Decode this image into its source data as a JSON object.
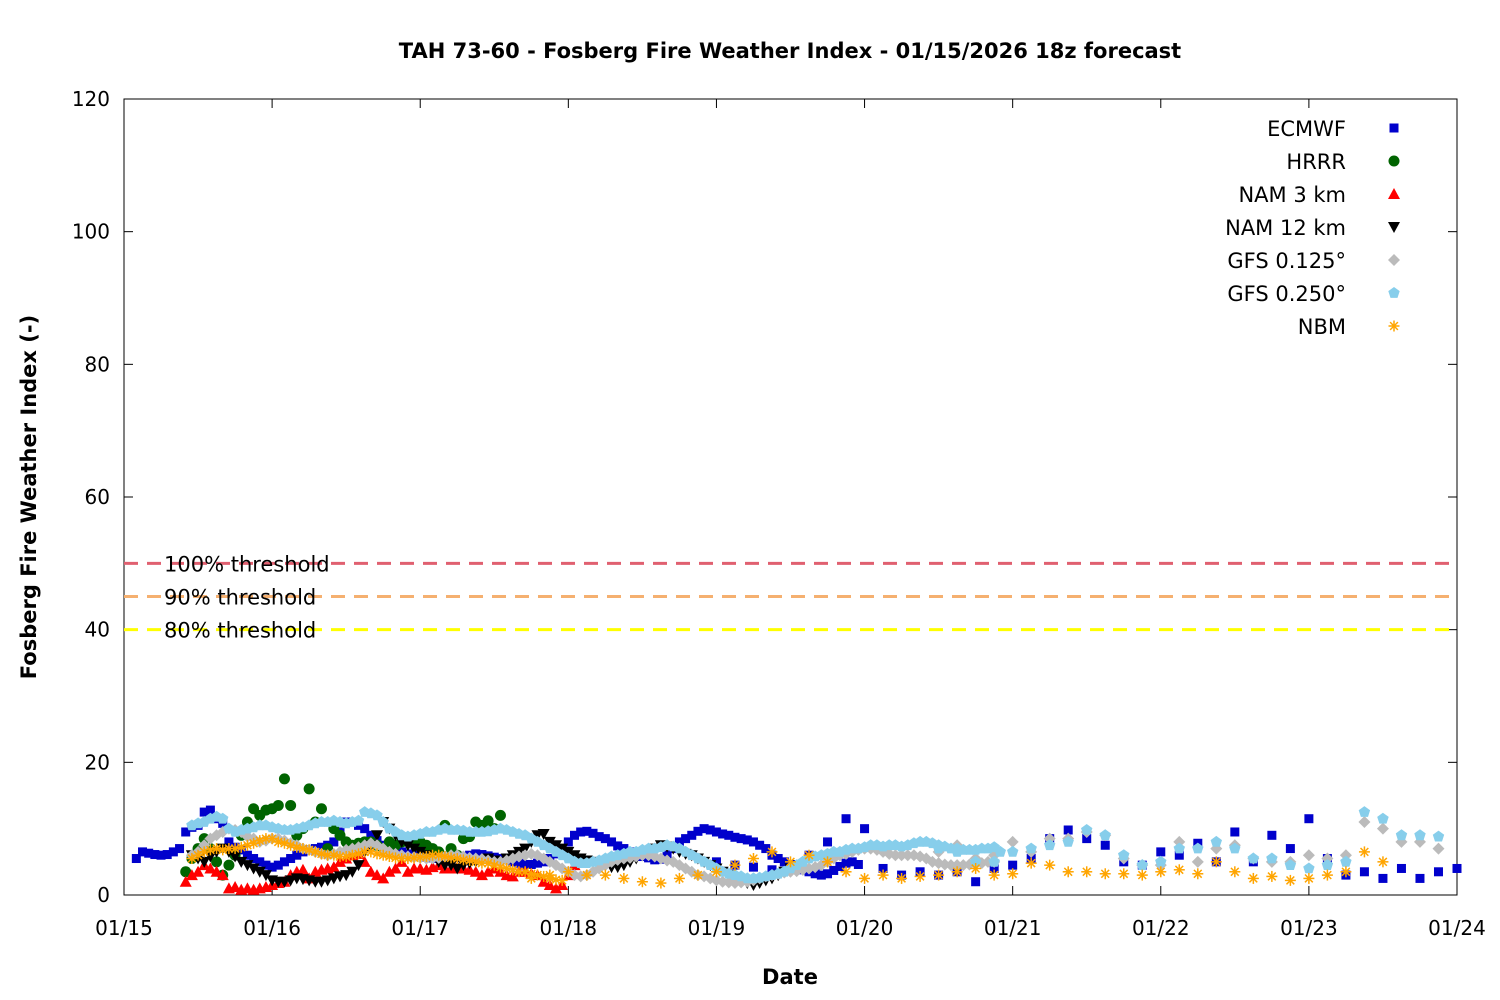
{
  "chart_data": {
    "type": "scatter",
    "title": "TAH 73-60 - Fosberg Fire Weather Index - 01/15/2026 18z forecast",
    "xlabel": "Date",
    "ylabel": "Fosberg Fire Weather Index (-)",
    "xlim": [
      "2026-01-15T00:00",
      "2026-01-24T00:00"
    ],
    "ylim": [
      0,
      120
    ],
    "x_ticks": [
      "01/15",
      "01/16",
      "01/17",
      "01/18",
      "01/19",
      "01/20",
      "01/21",
      "01/22",
      "01/23",
      "01/24"
    ],
    "y_ticks": [
      0,
      20,
      40,
      60,
      80,
      100,
      120
    ],
    "grid": false,
    "legend_position": "top-right",
    "thresholds": [
      {
        "name": "100% threshold",
        "value": 50,
        "color": "#e06070"
      },
      {
        "name": "90% threshold",
        "value": 45,
        "color": "#f5b070"
      },
      {
        "name": "80% threshold",
        "value": 40,
        "color": "#ffff00"
      }
    ],
    "series": [
      {
        "name": "ECMWF",
        "marker": "square",
        "color": "#0000cc",
        "start": "2026-01-15T02:00",
        "step_hours": 1,
        "values": [
          5.5,
          6.5,
          6.3,
          6.1,
          6,
          6.1,
          6.5,
          7,
          9.5,
          10.2,
          10.5,
          12.5,
          12.8,
          11.5,
          10.8,
          8,
          7.2,
          6.8,
          6,
          5.5,
          5,
          4.5,
          4.2,
          4.5,
          5,
          5.5,
          6,
          6.5,
          6.8,
          7,
          7.2,
          7.5,
          8,
          9.5,
          11,
          11,
          10.5,
          10,
          9,
          8.2,
          7.5,
          7,
          6.8,
          6.5,
          6.2,
          6,
          5.8,
          5.7,
          5.6,
          5.5,
          5.5,
          5.6,
          5.7,
          5.8,
          6,
          6.2,
          6.1,
          5.9,
          5.7,
          5.5,
          5.3,
          5,
          4.8,
          4.6,
          4.6,
          4.8,
          5,
          5.5,
          6.2,
          7,
          8,
          9,
          9.5,
          9.6,
          9.3,
          8.8,
          8.5,
          8,
          7.4,
          7,
          6.5,
          6.1,
          5.8,
          5.6,
          5.3,
          5.4,
          6,
          7,
          8,
          8.5,
          9,
          9.6,
          10,
          9.8,
          9.5,
          9.2,
          9,
          8.7,
          8.5,
          8.3,
          8,
          7.5,
          7,
          6,
          5.5,
          5,
          4.6,
          4.2,
          3.8,
          3.5,
          3.2,
          3,
          3.2,
          3.7,
          4.3,
          4.8,
          5,
          4.6
        ]
      },
      {
        "name": "ECMWF",
        "marker": "square",
        "color": "#0000cc",
        "start": "2026-01-19T00:00",
        "step_hours": 3,
        "values": [
          5,
          4.5,
          4.2,
          3.8,
          4.5,
          6,
          8,
          11.5,
          10,
          4,
          3,
          3.5,
          3,
          3.5,
          2,
          4,
          4.5,
          5.5,
          8.5,
          9.8,
          8.5,
          7.5,
          5,
          4.5,
          6.5,
          6,
          7.8,
          5,
          9.5,
          5,
          9,
          7,
          11.5,
          5.5,
          3,
          3.5,
          2.5,
          4,
          2.5,
          3.5,
          4
        ]
      },
      {
        "name": "HRRR",
        "marker": "circle",
        "color": "#006400",
        "start": "2026-01-15T10:00",
        "step_hours": 1,
        "values": [
          3.5,
          5.5,
          7,
          8.5,
          7,
          5,
          3,
          4.5,
          6,
          9,
          11,
          13,
          12,
          12.8,
          13,
          13.5,
          17.5,
          13.5,
          9,
          10,
          16,
          11,
          13,
          7,
          10,
          9,
          8,
          7.5,
          7.8,
          8,
          8,
          7.5,
          7,
          8,
          7.5,
          8,
          8.2,
          8.5,
          8,
          7.5,
          7,
          6.5,
          10.5,
          7,
          6,
          8.5,
          8.8,
          11,
          10.5,
          11.2,
          10,
          12
        ]
      },
      {
        "name": "NAM 3 km",
        "marker": "triangle-up",
        "color": "#ff0000",
        "start": "2026-01-15T10:00",
        "step_hours": 1,
        "values": [
          2,
          3,
          3.5,
          4.5,
          4,
          3.5,
          3,
          1,
          1.2,
          0.8,
          1,
          0.8,
          1,
          1.2,
          1.5,
          1.8,
          2,
          3,
          3.5,
          3.8,
          2.5,
          3.5,
          3.8,
          4,
          4.2,
          5,
          5.5,
          6,
          6.2,
          5,
          3.5,
          3,
          2.5,
          3.5,
          4,
          5,
          3.5,
          4,
          4,
          3.8,
          4.2,
          4.5,
          4,
          4,
          4.2,
          4,
          3.8,
          3.5,
          3,
          3.5,
          4,
          3.5,
          3,
          2.8,
          3.5,
          3.5,
          3.2,
          3,
          2,
          1.5,
          1,
          1.5,
          3,
          4.5,
          5
        ]
      },
      {
        "name": "NAM 12 km",
        "marker": "triangle-down",
        "color": "#000000",
        "start": "2026-01-15T11:00",
        "step_hours": 1,
        "values": [
          6,
          5.5,
          5,
          5.8,
          6.5,
          7,
          6.5,
          5.8,
          5,
          4.5,
          4,
          3.5,
          3,
          2.2,
          2,
          2,
          2.2,
          2.5,
          2.4,
          2.2,
          2,
          2,
          2.2,
          2.5,
          2.8,
          3,
          3.5,
          4.5,
          6.5,
          7.5,
          9,
          11,
          10,
          9,
          8,
          7.5,
          7,
          6.5,
          6,
          5.5,
          5,
          4.5,
          4.5,
          4,
          4.5,
          4.8,
          5,
          5.2,
          5.5,
          5.2,
          5,
          5.5,
          6,
          6.5,
          7,
          8,
          9,
          9.2,
          8,
          7.5,
          7,
          6.5,
          6,
          5.5,
          5.2,
          5,
          4.8,
          4.5,
          4.2,
          4.2,
          4.5,
          5,
          5.5,
          6,
          6.5,
          7,
          7.5,
          7.3,
          7,
          6.5,
          6.2,
          6,
          5.5,
          5,
          4.5,
          4,
          3.5,
          3,
          2.5,
          2,
          1.8,
          1.5,
          1.8,
          2.2,
          2.5,
          3,
          3.5,
          4,
          4,
          3.8
        ]
      },
      {
        "name": "GFS 0.125°",
        "marker": "diamond",
        "color": "#bbbbbb",
        "start": "2026-01-15T11:00",
        "step_hours": 1,
        "values": [
          6,
          6.5,
          7.5,
          8.5,
          9,
          9.5,
          10,
          9.8,
          9.5,
          8.8,
          8.5,
          8,
          8.2,
          8.5,
          8.5,
          8.2,
          7.8,
          7.5,
          7,
          6.8,
          6.5,
          6.2,
          6,
          6.2,
          6.5,
          6.8,
          7,
          7.2,
          7.5,
          7.8,
          7.5,
          7,
          6.5,
          6.2,
          6,
          5.8,
          5.7,
          5.6,
          5.5,
          5.5,
          5.6,
          5.8,
          6,
          6,
          5.8,
          5.6,
          5.5,
          5.4,
          5.2,
          5,
          5,
          5.2,
          5.5,
          5.8,
          6,
          6.2,
          6,
          5.5,
          5,
          4.5,
          4,
          3.5,
          3,
          2.8,
          3,
          3.5,
          4,
          4.5,
          5,
          5.3,
          5.5,
          5.6,
          5.8,
          6,
          6,
          5.8,
          5.5,
          5.2,
          5,
          4.5,
          4,
          3.5,
          3,
          2.8,
          2.5,
          2.2,
          2,
          1.9,
          1.8,
          1.9,
          2,
          2.2,
          2.5,
          2.8,
          3,
          3.2,
          3.4,
          3.5,
          3.6,
          3.8,
          4,
          4.2,
          4.5,
          5,
          5.5,
          6,
          6.2,
          6.5,
          6.8,
          7,
          7,
          6.8,
          6.5,
          6.2,
          6,
          6,
          6,
          6,
          5.8,
          5.5,
          5,
          4.8,
          4.6,
          4.5,
          4.5,
          4.5,
          4.6,
          4.7,
          4.8,
          5,
          5
        ]
      },
      {
        "name": "GFS 0.125°",
        "marker": "diamond",
        "color": "#bbbbbb",
        "start": "2026-01-20T12:00",
        "step_hours": 3,
        "values": [
          6.5,
          7.5,
          5.5,
          6,
          8,
          6.5,
          8.5,
          8.5,
          9.5,
          9,
          5.5,
          4.5,
          4.5,
          8,
          5,
          7,
          7.5,
          5.5,
          5,
          5,
          6,
          5.5,
          6,
          11,
          10,
          8,
          8,
          7
        ]
      },
      {
        "name": "GFS 0.250°",
        "marker": "pentagon",
        "color": "#87ceeb",
        "start": "2026-01-15T11:00",
        "step_hours": 1,
        "values": [
          10.5,
          10.8,
          11,
          11.5,
          11.8,
          11.5,
          10,
          9.5,
          9.8,
          10,
          10.2,
          10.5,
          10.5,
          10.2,
          10,
          9.8,
          9.8,
          10,
          10.2,
          10.5,
          10.8,
          11,
          11,
          11.2,
          11,
          10.8,
          11,
          11.2,
          12.5,
          12.3,
          12,
          11,
          10,
          9.5,
          9,
          8.8,
          9,
          9.2,
          9.5,
          9.5,
          9.8,
          10,
          9.8,
          9.8,
          9.7,
          9.5,
          9.5,
          9.5,
          9.6,
          9.8,
          10,
          9.8,
          9.5,
          9.2,
          9,
          8.5,
          8,
          7.5,
          7,
          6.5,
          6,
          5.5,
          5,
          4.8,
          4.8,
          5,
          5.2,
          5.5,
          5.8,
          6,
          6.2,
          6.5,
          6.5,
          6.8,
          7,
          7,
          7.2,
          7.5,
          7.3,
          7,
          6.5,
          6,
          5.5,
          5,
          4.5,
          4,
          3.5,
          3.2,
          3,
          2.8,
          2.5,
          2.5,
          2.6,
          2.8,
          3,
          3.2,
          3.5,
          4,
          4.5,
          5,
          5.5,
          5.8,
          6,
          6.2,
          6.5,
          6.5,
          6.8,
          7,
          7,
          7.2,
          7.5,
          7.5,
          7.3,
          7.5,
          7.5,
          7.3,
          7.5,
          7.8,
          8,
          8,
          7.8,
          7.5,
          7.3,
          7,
          7,
          6.8,
          6.8,
          6.8,
          7,
          7,
          7.2,
          6.5
        ]
      },
      {
        "name": "GFS 0.250°",
        "marker": "pentagon",
        "color": "#87ceeb",
        "start": "2026-01-20T12:00",
        "step_hours": 3,
        "values": [
          7,
          6.5,
          5,
          5,
          6.5,
          7,
          7.5,
          8,
          9.8,
          9,
          6,
          4.5,
          5,
          7,
          7,
          8,
          7,
          5.5,
          5.5,
          4.5,
          4,
          4.5,
          5,
          12.5,
          11.5,
          9,
          9,
          8.8
        ]
      },
      {
        "name": "NBM",
        "marker": "asterisk",
        "color": "#ffa500",
        "start": "2026-01-15T11:00",
        "step_hours": 1,
        "values": [
          5.5,
          6,
          6.5,
          6.8,
          7,
          6.8,
          7,
          7,
          7.2,
          7.5,
          7.8,
          8.2,
          8.5,
          8.5,
          8,
          7.8,
          7.5,
          7.2,
          7,
          6.8,
          6.5,
          6.2,
          6,
          6,
          5.8,
          5.8,
          6,
          6.2,
          6.5,
          6.5,
          6.2,
          6,
          5.8,
          5.6,
          5.5,
          5.5,
          5.6,
          5.7,
          5.8,
          6,
          6,
          5.8,
          5.6,
          5.5,
          5.3,
          5.2,
          5,
          4.8,
          4.8,
          4.5,
          4.2,
          4,
          3.8,
          3.5,
          3.5,
          3.2,
          3,
          2.8,
          2.5,
          2.3,
          2.2
        ]
      },
      {
        "name": "NBM",
        "marker": "asterisk",
        "color": "#ffa500",
        "start": "2026-01-17T18:00",
        "step_hours": 3,
        "values": [
          2.5,
          3,
          3.5,
          3,
          3,
          2.5,
          2,
          1.8,
          2.5,
          3,
          3.5,
          4.5,
          5.5,
          6.5,
          5,
          6,
          5,
          3.5,
          2.5,
          3,
          2.5,
          2.8,
          3,
          3.5,
          4,
          3,
          3.2,
          4.8,
          4.5,
          3.5,
          3.5,
          3.2,
          3.2,
          3,
          3.5,
          3.8,
          3.2,
          5,
          3.5,
          2.5,
          2.8,
          2.2,
          2.5,
          3,
          3.5,
          6.5,
          5
        ]
      }
    ]
  }
}
